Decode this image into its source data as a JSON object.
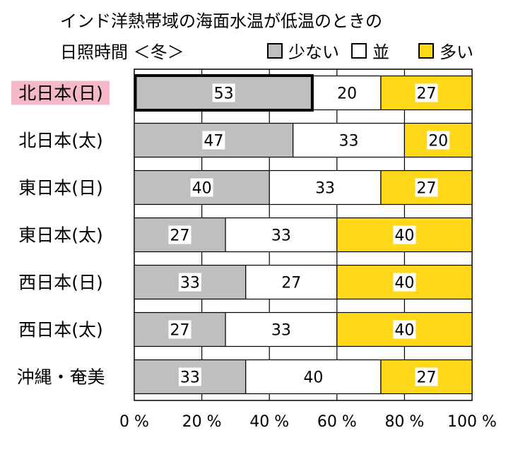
{
  "title_line1": "インド洋熱帯域の海面水温が低温のときの",
  "title_line2": "日照時間 ＜冬＞",
  "colors": {
    "few": "#bfbfbf",
    "normal": "#ffffff",
    "many": "#ffd81a",
    "highlight_bg": "#f4b8c8"
  },
  "legend": {
    "few": "少ない",
    "normal": "並",
    "many": "多い"
  },
  "chart_data": {
    "type": "bar",
    "orientation": "horizontal",
    "stacked": true,
    "categories": [
      "北日本(日)",
      "北日本(太)",
      "東日本(日)",
      "東日本(太)",
      "西日本(日)",
      "西日本(太)",
      "沖縄・奄美"
    ],
    "highlighted_category": "北日本(日)",
    "emphasized_segment": {
      "category": "北日本(日)",
      "series": "少ない"
    },
    "series": [
      {
        "name": "少ない",
        "values": [
          53,
          47,
          40,
          27,
          33,
          27,
          33
        ]
      },
      {
        "name": "並",
        "values": [
          20,
          33,
          33,
          33,
          27,
          33,
          40
        ]
      },
      {
        "name": "多い",
        "values": [
          27,
          20,
          27,
          40,
          40,
          40,
          27
        ]
      }
    ],
    "xlim": [
      0,
      100
    ],
    "x_ticks": [
      "0 %",
      "20 %",
      "40 %",
      "60 %",
      "80 %",
      "100 %"
    ],
    "grid": true,
    "legend_position": "top-right"
  }
}
